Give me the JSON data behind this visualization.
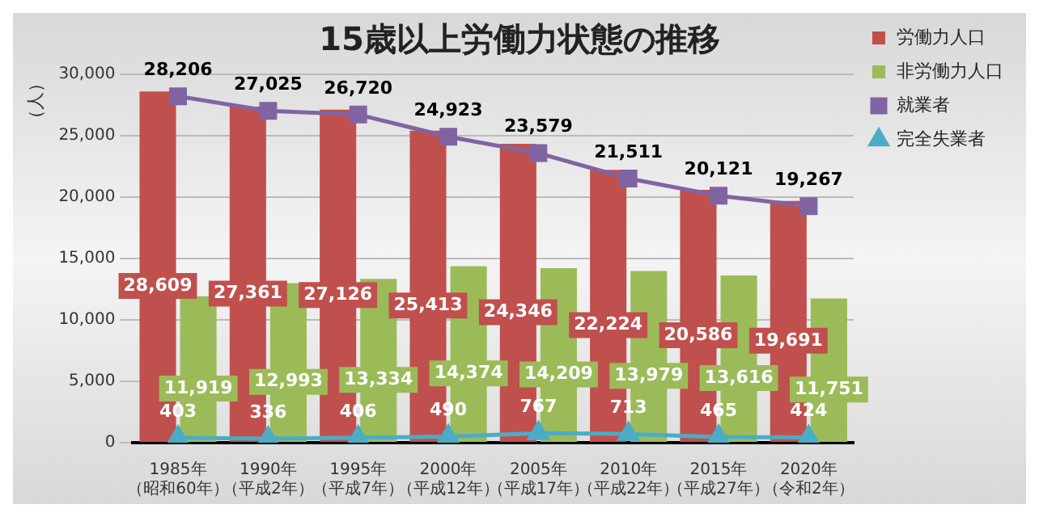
{
  "chart_data": {
    "type": "bar",
    "title": "15歳以上労働力状態の推移",
    "ylabel": "（人）",
    "categories": [
      "1985年（昭和60年）",
      "1990年（平成2年）",
      "1995年（平成7年）",
      "2000年（平成12年）",
      "2005年（平成17年）",
      "2010年（平成22年）",
      "2015年（平成27年）",
      "2020年（令和2年）"
    ],
    "series": [
      {
        "name": "労働力人口",
        "color": "#c0504d",
        "values": [
          28609,
          27361,
          27126,
          25413,
          24346,
          22224,
          20586,
          19691
        ],
        "value_labels": [
          "28,609",
          "27,361",
          "27,126",
          "25,413",
          "24,346",
          "22,224",
          "20,586",
          "19,691"
        ]
      },
      {
        "name": "非労働力人口",
        "color": "#9bbb59",
        "values": [
          11919,
          12993,
          13334,
          14374,
          14209,
          13979,
          13616,
          11751
        ],
        "value_labels": [
          "11,919",
          "12,993",
          "13,334",
          "14,374",
          "14,209",
          "13,979",
          "13,616",
          "11,751"
        ]
      },
      {
        "name": "就業者",
        "type": "line",
        "marker": "square",
        "color": "#8064a2",
        "values": [
          28206,
          27025,
          26720,
          24923,
          23579,
          21511,
          20121,
          19267
        ],
        "value_labels": [
          "28,206",
          "27,025",
          "26,720",
          "24,923",
          "23,579",
          "21,511",
          "20,121",
          "19,267"
        ]
      },
      {
        "name": "完全失業者",
        "type": "line",
        "marker": "triangle",
        "color": "#4bacc6",
        "values": [
          403,
          336,
          406,
          490,
          767,
          713,
          465,
          424
        ],
        "value_labels": [
          "403",
          "336",
          "406",
          "490",
          "767",
          "713",
          "465",
          "424"
        ]
      }
    ],
    "ylim": [
      0,
      30000
    ],
    "yticks": [
      0,
      {
        "value": 5000,
        "label": "5,000"
      },
      {
        "value": 10000,
        "label": "10,000"
      },
      {
        "value": 15000,
        "label": "15,000"
      },
      {
        "value": 20000,
        "label": "20,000"
      },
      {
        "value": 25000,
        "label": "25,000"
      },
      {
        "value": 30000,
        "label": "30,000"
      }
    ],
    "grid": "y",
    "legend": "top right"
  }
}
